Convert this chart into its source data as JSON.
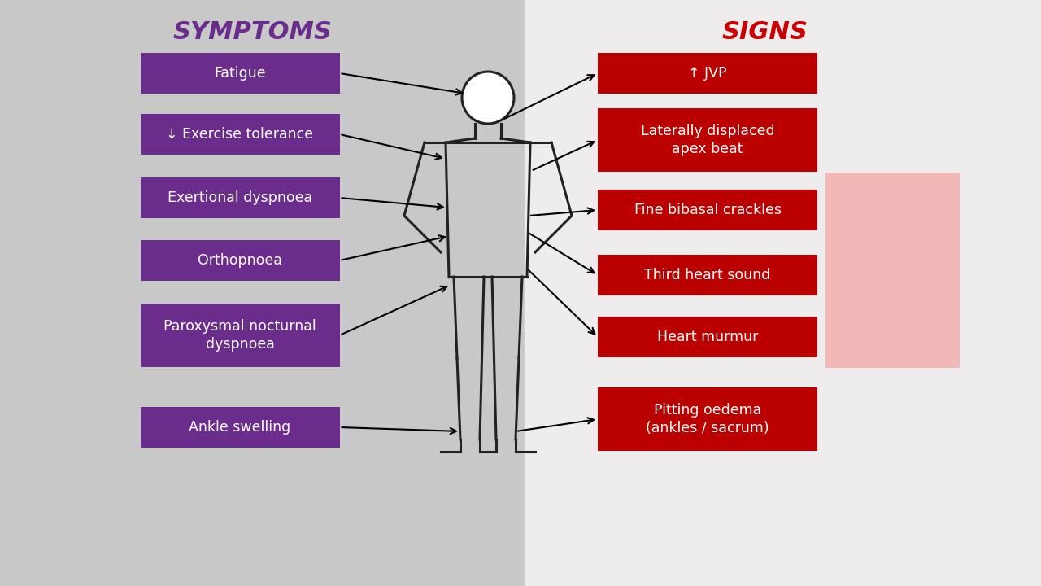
{
  "left_bg_color": "#c8c8c8",
  "right_bg_color": "#eeecec",
  "symptoms_title": "SYMPTOMS",
  "signs_title": "SIGNS",
  "symptoms_title_color": "#6b2d8b",
  "signs_title_color": "#cc0000",
  "symptoms_box_color": "#6b2d8b",
  "signs_box_color": "#bb0000",
  "box_text_color": "#ffffff",
  "symptoms": [
    "Fatigue",
    "↓ Exercise tolerance",
    "Exertional dyspnoea",
    "Orthopnoea",
    "Paroxysmal nocturnal\ndyspnoea",
    "Ankle swelling"
  ],
  "signs": [
    "↑ JVP",
    "Laterally displaced\napex beat",
    "Fine bibasal crackles",
    "Third heart sound",
    "Heart murmur",
    "Pitting oedema\n(ankles / sacrum)"
  ],
  "pink_box_color": "#f2b8b8",
  "figsize": [
    12.8,
    7.2
  ],
  "dpi": 100
}
